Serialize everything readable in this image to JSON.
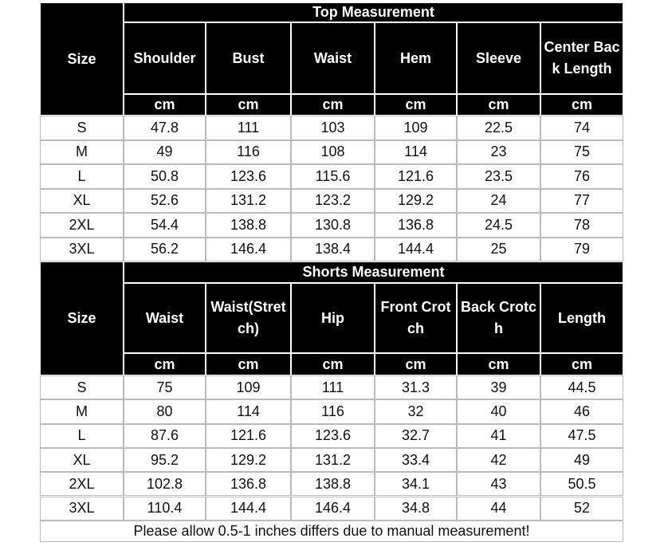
{
  "tables": [
    {
      "title": "Top Measurement",
      "size_header": "Size",
      "columns": [
        {
          "name": "Shoulder",
          "unit": "cm"
        },
        {
          "name": "Bust",
          "unit": "cm"
        },
        {
          "name": "Waist",
          "unit": "cm"
        },
        {
          "name": "Hem",
          "unit": "cm"
        },
        {
          "name": "Sleeve",
          "unit": "cm"
        },
        {
          "name": "Center Back Length",
          "unit": "cm"
        }
      ],
      "rows": [
        [
          "S",
          "47.8",
          "111",
          "103",
          "109",
          "22.5",
          "74"
        ],
        [
          "M",
          "49",
          "116",
          "108",
          "114",
          "23",
          "75"
        ],
        [
          "L",
          "50.8",
          "123.6",
          "115.6",
          "121.6",
          "23.5",
          "76"
        ],
        [
          "XL",
          "52.6",
          "131.2",
          "123.2",
          "129.2",
          "24",
          "77"
        ],
        [
          "2XL",
          "54.4",
          "138.8",
          "130.8",
          "136.8",
          "24.5",
          "78"
        ],
        [
          "3XL",
          "56.2",
          "146.4",
          "138.4",
          "144.4",
          "25",
          "79"
        ]
      ]
    },
    {
      "title": "Shorts Measurement",
      "size_header": "Size",
      "columns": [
        {
          "name": "Waist",
          "unit": "cm"
        },
        {
          "name": "Waist(Stretch)",
          "unit": "cm"
        },
        {
          "name": "Hip",
          "unit": "cm"
        },
        {
          "name": "Front Crotch",
          "unit": "cm"
        },
        {
          "name": "Back Crotch",
          "unit": "cm"
        },
        {
          "name": "Length",
          "unit": "cm"
        }
      ],
      "rows": [
        [
          "S",
          "75",
          "109",
          "111",
          "31.3",
          "39",
          "44.5"
        ],
        [
          "M",
          "80",
          "114",
          "116",
          "32",
          "40",
          "46"
        ],
        [
          "L",
          "87.6",
          "121.6",
          "123.6",
          "32.7",
          "41",
          "47.5"
        ],
        [
          "XL",
          "95.2",
          "129.2",
          "131.2",
          "33.4",
          "42",
          "49"
        ],
        [
          "2XL",
          "102.8",
          "136.8",
          "138.8",
          "34.1",
          "43",
          "50.5"
        ],
        [
          "3XL",
          "110.4",
          "144.4",
          "146.4",
          "34.8",
          "44",
          "52"
        ]
      ]
    }
  ],
  "note": "Please allow 0.5-1 inches differs due to manual measurement!"
}
